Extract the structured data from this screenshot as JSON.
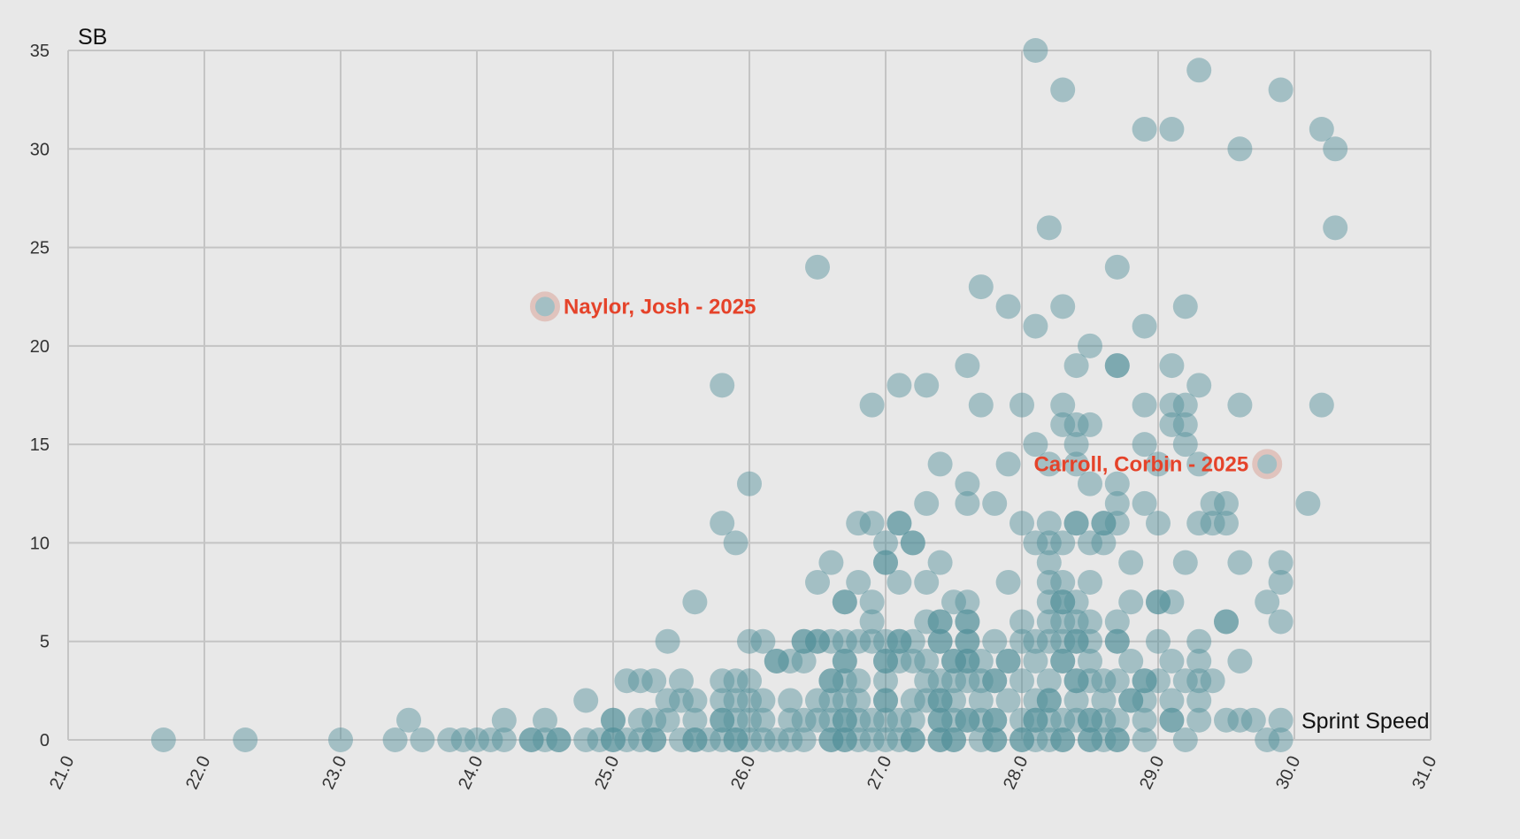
{
  "chart_data": {
    "type": "scatter",
    "title": "",
    "xlabel": "Sprint Speed",
    "ylabel": "SB",
    "xlim": [
      21.0,
      31.0
    ],
    "ylim": [
      0,
      35
    ],
    "x_ticks": [
      "21.0",
      "22.0",
      "23.0",
      "24.0",
      "25.0",
      "26.0",
      "27.0",
      "28.0",
      "29.0",
      "30.0",
      "31.0"
    ],
    "y_ticks": [
      "0",
      "5",
      "10",
      "15",
      "20",
      "25",
      "30",
      "35"
    ],
    "grid": true,
    "legend": null,
    "colors": {
      "background": "#e8e8e8",
      "grid": "#c4c4c4",
      "point": "#4f8f98",
      "highlight": "#e5432a",
      "highlight_ring": "#e0c3bd"
    },
    "annotations": [
      {
        "label": "Naylor, Josh - 2025",
        "x": 24.5,
        "y": 22,
        "label_side": "right"
      },
      {
        "label": "Carroll, Corbin - 2025",
        "x": 29.8,
        "y": 14,
        "label_side": "left"
      }
    ],
    "points": [
      [
        28.1,
        35
      ],
      [
        28.3,
        33
      ],
      [
        29.3,
        34
      ],
      [
        29.9,
        33
      ],
      [
        28.9,
        31
      ],
      [
        29.1,
        31
      ],
      [
        30.2,
        31
      ],
      [
        29.6,
        30
      ],
      [
        30.3,
        30
      ],
      [
        28.2,
        26
      ],
      [
        30.3,
        26
      ],
      [
        26.5,
        24
      ],
      [
        28.7,
        24
      ],
      [
        27.7,
        23
      ],
      [
        27.9,
        22
      ],
      [
        28.3,
        22
      ],
      [
        29.2,
        22
      ],
      [
        24.5,
        22
      ],
      [
        28.1,
        21
      ],
      [
        28.9,
        21
      ],
      [
        28.5,
        20
      ],
      [
        27.6,
        19
      ],
      [
        28.4,
        19
      ],
      [
        28.7,
        19
      ],
      [
        28.7,
        19
      ],
      [
        29.1,
        19
      ],
      [
        25.8,
        18
      ],
      [
        27.1,
        18
      ],
      [
        27.3,
        18
      ],
      [
        29.3,
        18
      ],
      [
        26.9,
        17
      ],
      [
        27.7,
        17
      ],
      [
        28.0,
        17
      ],
      [
        28.3,
        17
      ],
      [
        28.9,
        17
      ],
      [
        29.1,
        17
      ],
      [
        29.2,
        17
      ],
      [
        29.6,
        17
      ],
      [
        30.2,
        17
      ],
      [
        28.3,
        16
      ],
      [
        28.4,
        16
      ],
      [
        28.5,
        16
      ],
      [
        29.1,
        16
      ],
      [
        29.2,
        16
      ],
      [
        28.1,
        15
      ],
      [
        28.4,
        15
      ],
      [
        28.9,
        15
      ],
      [
        29.2,
        15
      ],
      [
        27.4,
        14
      ],
      [
        27.9,
        14
      ],
      [
        28.2,
        14
      ],
      [
        28.4,
        14
      ],
      [
        29.0,
        14
      ],
      [
        29.3,
        14
      ],
      [
        29.8,
        14
      ],
      [
        26.0,
        13
      ],
      [
        27.6,
        13
      ],
      [
        28.5,
        13
      ],
      [
        28.7,
        13
      ],
      [
        27.3,
        12
      ],
      [
        27.6,
        12
      ],
      [
        27.8,
        12
      ],
      [
        28.7,
        12
      ],
      [
        28.9,
        12
      ],
      [
        29.4,
        12
      ],
      [
        29.5,
        12
      ],
      [
        30.1,
        12
      ],
      [
        25.8,
        11
      ],
      [
        26.8,
        11
      ],
      [
        26.9,
        11
      ],
      [
        27.1,
        11
      ],
      [
        27.1,
        11
      ],
      [
        28.0,
        11
      ],
      [
        28.2,
        11
      ],
      [
        28.4,
        11
      ],
      [
        28.4,
        11
      ],
      [
        28.6,
        11
      ],
      [
        28.6,
        11
      ],
      [
        28.7,
        11
      ],
      [
        29.0,
        11
      ],
      [
        29.3,
        11
      ],
      [
        29.4,
        11
      ],
      [
        29.5,
        11
      ],
      [
        25.9,
        10
      ],
      [
        27.0,
        10
      ],
      [
        27.2,
        10
      ],
      [
        27.2,
        10
      ],
      [
        28.1,
        10
      ],
      [
        28.2,
        10
      ],
      [
        28.3,
        10
      ],
      [
        28.5,
        10
      ],
      [
        28.6,
        10
      ],
      [
        26.6,
        9
      ],
      [
        27.0,
        9
      ],
      [
        27.0,
        9
      ],
      [
        27.4,
        9
      ],
      [
        28.2,
        9
      ],
      [
        28.8,
        9
      ],
      [
        29.2,
        9
      ],
      [
        29.6,
        9
      ],
      [
        29.9,
        9
      ],
      [
        26.5,
        8
      ],
      [
        26.8,
        8
      ],
      [
        27.1,
        8
      ],
      [
        27.3,
        8
      ],
      [
        27.9,
        8
      ],
      [
        28.2,
        8
      ],
      [
        28.3,
        8
      ],
      [
        28.5,
        8
      ],
      [
        29.9,
        8
      ],
      [
        25.6,
        7
      ],
      [
        26.7,
        7
      ],
      [
        26.7,
        7
      ],
      [
        26.9,
        7
      ],
      [
        27.5,
        7
      ],
      [
        27.6,
        7
      ],
      [
        28.2,
        7
      ],
      [
        28.3,
        7
      ],
      [
        28.3,
        7
      ],
      [
        28.4,
        7
      ],
      [
        28.8,
        7
      ],
      [
        29.0,
        7
      ],
      [
        29.0,
        7
      ],
      [
        29.1,
        7
      ],
      [
        29.8,
        7
      ],
      [
        26.9,
        6
      ],
      [
        27.3,
        6
      ],
      [
        27.4,
        6
      ],
      [
        27.4,
        6
      ],
      [
        27.6,
        6
      ],
      [
        27.6,
        6
      ],
      [
        28.0,
        6
      ],
      [
        28.2,
        6
      ],
      [
        28.3,
        6
      ],
      [
        28.4,
        6
      ],
      [
        28.5,
        6
      ],
      [
        28.7,
        6
      ],
      [
        29.5,
        6
      ],
      [
        29.5,
        6
      ],
      [
        29.9,
        6
      ],
      [
        25.4,
        5
      ],
      [
        26.0,
        5
      ],
      [
        26.1,
        5
      ],
      [
        26.4,
        5
      ],
      [
        26.4,
        5
      ],
      [
        26.5,
        5
      ],
      [
        26.5,
        5
      ],
      [
        26.6,
        5
      ],
      [
        26.7,
        5
      ],
      [
        26.8,
        5
      ],
      [
        26.9,
        5
      ],
      [
        27.0,
        5
      ],
      [
        27.1,
        5
      ],
      [
        27.1,
        5
      ],
      [
        27.2,
        5
      ],
      [
        27.4,
        5
      ],
      [
        27.4,
        5
      ],
      [
        27.6,
        5
      ],
      [
        27.6,
        5
      ],
      [
        27.8,
        5
      ],
      [
        28.0,
        5
      ],
      [
        28.1,
        5
      ],
      [
        28.2,
        5
      ],
      [
        28.3,
        5
      ],
      [
        28.4,
        5
      ],
      [
        28.4,
        5
      ],
      [
        28.5,
        5
      ],
      [
        28.7,
        5
      ],
      [
        28.7,
        5
      ],
      [
        29.0,
        5
      ],
      [
        29.3,
        5
      ],
      [
        26.2,
        4
      ],
      [
        26.2,
        4
      ],
      [
        26.3,
        4
      ],
      [
        26.4,
        4
      ],
      [
        26.7,
        4
      ],
      [
        26.7,
        4
      ],
      [
        27.0,
        4
      ],
      [
        27.0,
        4
      ],
      [
        27.1,
        4
      ],
      [
        27.2,
        4
      ],
      [
        27.3,
        4
      ],
      [
        27.5,
        4
      ],
      [
        27.5,
        4
      ],
      [
        27.6,
        4
      ],
      [
        27.6,
        4
      ],
      [
        27.7,
        4
      ],
      [
        27.9,
        4
      ],
      [
        27.9,
        4
      ],
      [
        28.1,
        4
      ],
      [
        28.3,
        4
      ],
      [
        28.3,
        4
      ],
      [
        28.5,
        4
      ],
      [
        28.8,
        4
      ],
      [
        29.1,
        4
      ],
      [
        29.3,
        4
      ],
      [
        29.6,
        4
      ],
      [
        25.1,
        3
      ],
      [
        25.2,
        3
      ],
      [
        25.3,
        3
      ],
      [
        25.5,
        3
      ],
      [
        25.8,
        3
      ],
      [
        25.9,
        3
      ],
      [
        26.0,
        3
      ],
      [
        26.6,
        3
      ],
      [
        26.6,
        3
      ],
      [
        26.7,
        3
      ],
      [
        26.8,
        3
      ],
      [
        27.0,
        3
      ],
      [
        27.3,
        3
      ],
      [
        27.4,
        3
      ],
      [
        27.5,
        3
      ],
      [
        27.6,
        3
      ],
      [
        27.7,
        3
      ],
      [
        27.8,
        3
      ],
      [
        27.8,
        3
      ],
      [
        28.0,
        3
      ],
      [
        28.2,
        3
      ],
      [
        28.4,
        3
      ],
      [
        28.4,
        3
      ],
      [
        28.5,
        3
      ],
      [
        28.6,
        3
      ],
      [
        28.7,
        3
      ],
      [
        28.9,
        3
      ],
      [
        28.9,
        3
      ],
      [
        29.0,
        3
      ],
      [
        29.2,
        3
      ],
      [
        29.3,
        3
      ],
      [
        29.4,
        3
      ],
      [
        24.8,
        2
      ],
      [
        25.4,
        2
      ],
      [
        25.5,
        2
      ],
      [
        25.6,
        2
      ],
      [
        25.8,
        2
      ],
      [
        25.9,
        2
      ],
      [
        26.0,
        2
      ],
      [
        26.1,
        2
      ],
      [
        26.3,
        2
      ],
      [
        26.5,
        2
      ],
      [
        26.6,
        2
      ],
      [
        26.7,
        2
      ],
      [
        26.8,
        2
      ],
      [
        27.0,
        2
      ],
      [
        27.0,
        2
      ],
      [
        27.2,
        2
      ],
      [
        27.3,
        2
      ],
      [
        27.4,
        2
      ],
      [
        27.4,
        2
      ],
      [
        27.5,
        2
      ],
      [
        27.7,
        2
      ],
      [
        27.9,
        2
      ],
      [
        28.1,
        2
      ],
      [
        28.2,
        2
      ],
      [
        28.2,
        2
      ],
      [
        28.4,
        2
      ],
      [
        28.6,
        2
      ],
      [
        28.8,
        2
      ],
      [
        28.8,
        2
      ],
      [
        28.9,
        2
      ],
      [
        29.1,
        2
      ],
      [
        29.3,
        2
      ],
      [
        23.5,
        1
      ],
      [
        24.2,
        1
      ],
      [
        24.5,
        1
      ],
      [
        25.0,
        1
      ],
      [
        25.0,
        1
      ],
      [
        25.2,
        1
      ],
      [
        25.3,
        1
      ],
      [
        25.4,
        1
      ],
      [
        25.6,
        1
      ],
      [
        25.8,
        1
      ],
      [
        25.8,
        1
      ],
      [
        25.9,
        1
      ],
      [
        26.0,
        1
      ],
      [
        26.1,
        1
      ],
      [
        26.3,
        1
      ],
      [
        26.4,
        1
      ],
      [
        26.5,
        1
      ],
      [
        26.6,
        1
      ],
      [
        26.7,
        1
      ],
      [
        26.7,
        1
      ],
      [
        26.8,
        1
      ],
      [
        26.9,
        1
      ],
      [
        27.0,
        1
      ],
      [
        27.1,
        1
      ],
      [
        27.2,
        1
      ],
      [
        27.4,
        1
      ],
      [
        27.4,
        1
      ],
      [
        27.5,
        1
      ],
      [
        27.6,
        1
      ],
      [
        27.6,
        1
      ],
      [
        27.7,
        1
      ],
      [
        27.8,
        1
      ],
      [
        27.8,
        1
      ],
      [
        28.0,
        1
      ],
      [
        28.1,
        1
      ],
      [
        28.1,
        1
      ],
      [
        28.2,
        1
      ],
      [
        28.3,
        1
      ],
      [
        28.4,
        1
      ],
      [
        28.5,
        1
      ],
      [
        28.5,
        1
      ],
      [
        28.6,
        1
      ],
      [
        28.7,
        1
      ],
      [
        28.9,
        1
      ],
      [
        29.1,
        1
      ],
      [
        29.1,
        1
      ],
      [
        29.3,
        1
      ],
      [
        29.5,
        1
      ],
      [
        29.6,
        1
      ],
      [
        29.7,
        1
      ],
      [
        29.9,
        1
      ],
      [
        21.7,
        0
      ],
      [
        22.3,
        0
      ],
      [
        23.0,
        0
      ],
      [
        23.4,
        0
      ],
      [
        23.6,
        0
      ],
      [
        23.8,
        0
      ],
      [
        23.9,
        0
      ],
      [
        24.0,
        0
      ],
      [
        24.1,
        0
      ],
      [
        24.2,
        0
      ],
      [
        24.4,
        0
      ],
      [
        24.4,
        0
      ],
      [
        24.5,
        0
      ],
      [
        24.6,
        0
      ],
      [
        24.6,
        0
      ],
      [
        24.8,
        0
      ],
      [
        24.9,
        0
      ],
      [
        25.0,
        0
      ],
      [
        25.0,
        0
      ],
      [
        25.1,
        0
      ],
      [
        25.2,
        0
      ],
      [
        25.3,
        0
      ],
      [
        25.3,
        0
      ],
      [
        25.5,
        0
      ],
      [
        25.6,
        0
      ],
      [
        25.6,
        0
      ],
      [
        25.7,
        0
      ],
      [
        25.8,
        0
      ],
      [
        25.9,
        0
      ],
      [
        25.9,
        0
      ],
      [
        26.0,
        0
      ],
      [
        26.1,
        0
      ],
      [
        26.2,
        0
      ],
      [
        26.3,
        0
      ],
      [
        26.4,
        0
      ],
      [
        26.6,
        0
      ],
      [
        26.6,
        0
      ],
      [
        26.7,
        0
      ],
      [
        26.7,
        0
      ],
      [
        26.8,
        0
      ],
      [
        26.9,
        0
      ],
      [
        27.0,
        0
      ],
      [
        27.1,
        0
      ],
      [
        27.2,
        0
      ],
      [
        27.2,
        0
      ],
      [
        27.4,
        0
      ],
      [
        27.4,
        0
      ],
      [
        27.5,
        0
      ],
      [
        27.5,
        0
      ],
      [
        27.7,
        0
      ],
      [
        27.8,
        0
      ],
      [
        27.8,
        0
      ],
      [
        28.0,
        0
      ],
      [
        28.0,
        0
      ],
      [
        28.1,
        0
      ],
      [
        28.2,
        0
      ],
      [
        28.3,
        0
      ],
      [
        28.3,
        0
      ],
      [
        28.5,
        0
      ],
      [
        28.5,
        0
      ],
      [
        28.6,
        0
      ],
      [
        28.7,
        0
      ],
      [
        28.7,
        0
      ],
      [
        28.9,
        0
      ],
      [
        29.2,
        0
      ],
      [
        29.8,
        0
      ],
      [
        29.9,
        0
      ]
    ]
  }
}
